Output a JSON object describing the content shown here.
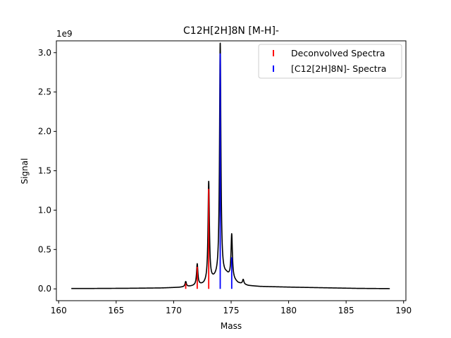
{
  "chart_data": {
    "type": "line",
    "title": "C12H[2H]8N [M-H]-",
    "xlabel": "Mass",
    "ylabel": "Signal",
    "offset_label": "1e9",
    "xlim": [
      159.8,
      190.2
    ],
    "ylim": [
      -0.15,
      3.15
    ],
    "x_ticks": [
      160,
      165,
      170,
      175,
      180,
      185,
      190
    ],
    "y_ticks": [
      0.0,
      0.5,
      1.0,
      1.5,
      2.0,
      2.5,
      3.0
    ],
    "x_tick_labels": [
      "160",
      "165",
      "170",
      "175",
      "180",
      "185",
      "190"
    ],
    "y_tick_labels": [
      "0.0",
      "0.5",
      "1.0",
      "1.5",
      "2.0",
      "2.5",
      "3.0"
    ],
    "grid": false,
    "legend_position": "top-right",
    "legend": [
      "Deconvolved Spectra",
      "[C12[2H]8N]- Spectra"
    ],
    "series": [
      {
        "name": "Deconvolved Spectra",
        "kind": "stem",
        "color": "#ff0000",
        "x": [
          171.05,
          172.05,
          173.05
        ],
        "values": [
          0.07,
          0.28,
          1.27
        ]
      },
      {
        "name": "[C12[2H]8N]- Spectra",
        "kind": "stem",
        "color": "#0000ff",
        "x": [
          174.05,
          175.05
        ],
        "values": [
          2.99,
          0.4
        ]
      },
      {
        "name": "",
        "kind": "line",
        "color": "#000000",
        "baseline": [
          [
            161.1,
            0.005
          ],
          [
            163.0,
            0.005
          ],
          [
            166.0,
            0.007
          ],
          [
            169.0,
            0.011
          ],
          [
            170.5,
            0.018
          ],
          [
            171.5,
            0.03
          ],
          [
            172.6,
            0.05
          ],
          [
            173.6,
            0.12
          ],
          [
            174.6,
            0.17
          ],
          [
            175.6,
            0.07
          ],
          [
            176.5,
            0.04
          ],
          [
            177.5,
            0.03
          ],
          [
            180.0,
            0.022
          ],
          [
            183.0,
            0.014
          ],
          [
            186.0,
            0.006
          ],
          [
            188.8,
            0.003
          ]
        ],
        "peaks": [
          {
            "x": 171.05,
            "height": 0.065,
            "width": 0.07
          },
          {
            "x": 172.05,
            "height": 0.27,
            "width": 0.07
          },
          {
            "x": 173.05,
            "height": 1.27,
            "width": 0.07
          },
          {
            "x": 174.05,
            "height": 2.98,
            "width": 0.07
          },
          {
            "x": 175.05,
            "height": 0.56,
            "width": 0.07
          },
          {
            "x": 176.05,
            "height": 0.06,
            "width": 0.07
          }
        ]
      }
    ]
  }
}
